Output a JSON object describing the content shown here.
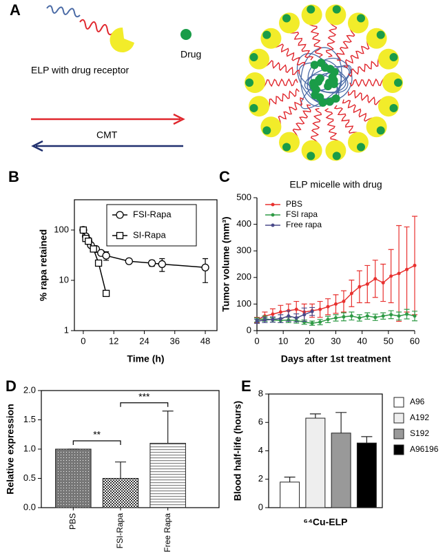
{
  "diagram": {
    "label": "A",
    "receptor_label": "ELP with drug receptor",
    "drug_label": "Drug",
    "arrow_label": "CMT"
  },
  "chart_data": [
    {
      "type": "line",
      "label": "B",
      "xlabel": "Time (h)",
      "ylabel": "% rapa retained",
      "yscale": "log",
      "xlim": [
        -3.5,
        52.6
      ],
      "ylim": [
        1,
        400
      ],
      "xticks": [
        0,
        12,
        24,
        36,
        48
      ],
      "yticks": [
        1,
        10,
        100
      ],
      "legend": "upper right",
      "frame": true,
      "series": [
        {
          "name": "FSI-Rapa",
          "marker": "circle",
          "color": "#000000",
          "x": [
            0,
            1,
            2,
            3,
            5,
            7,
            9,
            18,
            27,
            31,
            48
          ],
          "values": [
            100,
            75,
            62,
            50,
            42,
            35,
            31,
            24,
            22,
            21,
            18
          ],
          "errors": [
            8,
            null,
            null,
            null,
            5,
            null,
            6,
            null,
            3,
            6,
            9
          ]
        },
        {
          "name": "SI-Rapa",
          "marker": "square",
          "color": "#000000",
          "x": [
            0,
            1,
            2,
            4,
            6,
            9
          ],
          "values": [
            100,
            68,
            60,
            42,
            22,
            5.5
          ]
        }
      ]
    },
    {
      "type": "line",
      "label": "C",
      "title": "ELP micelle with drug",
      "xlabel": "Days after 1st treatment",
      "ylabel": "Tumor volume (mm³)",
      "xlim": [
        0,
        60
      ],
      "ylim": [
        0,
        500
      ],
      "xticks": [
        0,
        10,
        20,
        30,
        40,
        50,
        60
      ],
      "yticks": [
        0,
        100,
        200,
        300,
        400,
        500
      ],
      "legend": "upper left",
      "frame": false,
      "series": [
        {
          "name": "PBS",
          "marker": "dot",
          "color": "#e8312f",
          "x": [
            0,
            3,
            6,
            9,
            12,
            15,
            18,
            21,
            24,
            27,
            30,
            33,
            36,
            39,
            42,
            45,
            48,
            51,
            54,
            57,
            60
          ],
          "values": [
            40,
            55,
            62,
            70,
            75,
            80,
            70,
            75,
            80,
            90,
            100,
            110,
            140,
            165,
            175,
            195,
            180,
            205,
            215,
            230,
            245
          ],
          "errors": [
            10,
            15,
            20,
            25,
            25,
            30,
            30,
            25,
            30,
            30,
            35,
            40,
            50,
            60,
            70,
            70,
            70,
            100,
            180,
            160,
            185
          ]
        },
        {
          "name": "FSI rapa",
          "marker": "dot",
          "color": "#2e9a45",
          "x": [
            0,
            3,
            6,
            9,
            12,
            15,
            18,
            21,
            24,
            27,
            30,
            33,
            36,
            39,
            42,
            45,
            48,
            51,
            54,
            57,
            60
          ],
          "values": [
            40,
            45,
            40,
            38,
            40,
            38,
            32,
            28,
            32,
            42,
            48,
            52,
            55,
            48,
            55,
            50,
            55,
            60,
            55,
            62,
            55
          ],
          "errors": [
            8,
            10,
            8,
            8,
            10,
            10,
            8,
            8,
            10,
            12,
            12,
            15,
            15,
            12,
            12,
            12,
            12,
            15,
            15,
            18,
            18
          ]
        },
        {
          "name": "Free rapa",
          "marker": "dot",
          "color": "#4a4a8a",
          "x": [
            0,
            3,
            6,
            9,
            12,
            15,
            18,
            21
          ],
          "values": [
            35,
            40,
            42,
            45,
            55,
            48,
            60,
            72
          ],
          "errors": [
            8,
            10,
            10,
            15,
            20,
            15,
            25,
            15
          ]
        }
      ]
    },
    {
      "type": "bar",
      "label": "D",
      "ylabel": "Relative expression",
      "frame": true,
      "categories": [
        "PBS",
        "FSI-Rapa",
        "Free Rapa"
      ],
      "values": [
        1.0,
        0.5,
        1.1
      ],
      "errors": [
        0,
        0.28,
        0.55
      ],
      "colors": [
        "#555555",
        "#333333",
        "#8a8a8a"
      ],
      "hatch": [
        "crosshatch",
        "checker",
        "horizontal"
      ],
      "ylim": [
        0,
        2
      ],
      "yticks": [
        {
          "value": 0,
          "label": "0.0"
        },
        {
          "value": 0.5,
          "label": "0.5"
        },
        {
          "value": 1,
          "label": "1.0"
        },
        {
          "value": 1.5,
          "label": "1.5"
        },
        {
          "value": 2,
          "label": "2.0"
        }
      ],
      "annotations": [
        {
          "text": "**",
          "between": [
            "PBS",
            "FSI-Rapa"
          ]
        },
        {
          "text": "***",
          "between": [
            "FSI-Rapa",
            "Free Rapa"
          ]
        }
      ]
    },
    {
      "type": "bar",
      "label": "E",
      "xlabel": "⁶⁴Cu-ELP",
      "ylabel": "Blood half-life (hours)",
      "frame": true,
      "legend": "right",
      "categories": [
        "A96",
        "A192",
        "S192",
        "A96196"
      ],
      "values": [
        1.8,
        6.3,
        5.25,
        4.55
      ],
      "errors": [
        0.35,
        0.3,
        1.45,
        0.45
      ],
      "colors": [
        "#ffffff",
        "#eeeeee",
        "#999999",
        "#000000"
      ],
      "ylim": [
        0,
        8
      ],
      "yticks": [
        0,
        2,
        4,
        6,
        8
      ]
    }
  ]
}
